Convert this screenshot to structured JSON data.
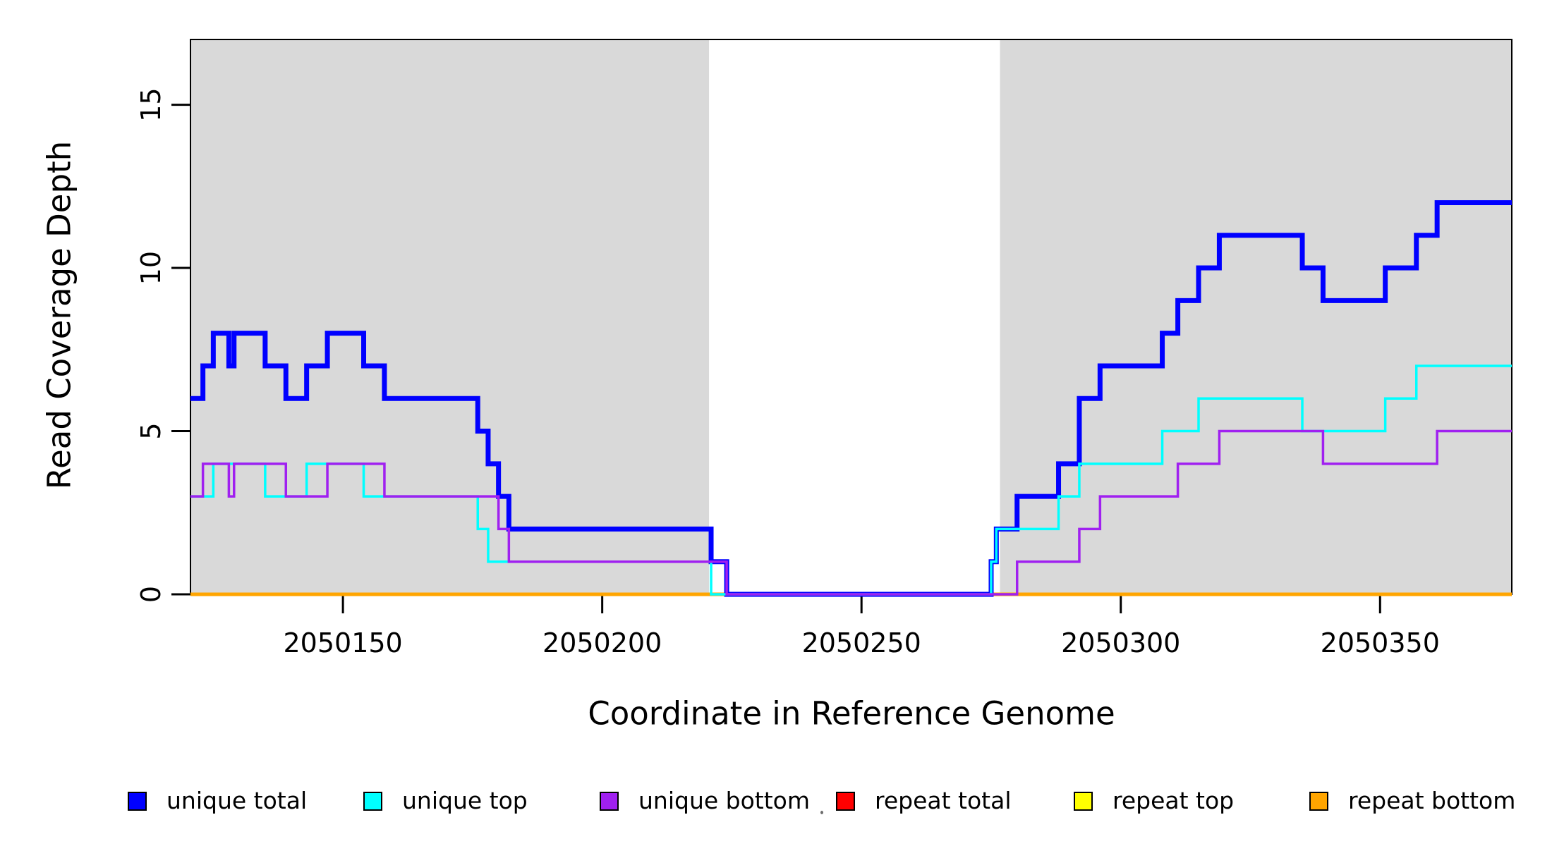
{
  "figure": {
    "xlabel": "Coordinate in Reference Genome",
    "ylabel": "Read Coverage Depth",
    "stray_mark": ""
  },
  "chart_data": {
    "type": "line",
    "subtype": "step-coverage",
    "title": "",
    "xlabel": "Coordinate in Reference Genome",
    "ylabel": "Read Coverage Depth",
    "xlim": [
      2050120.6,
      2050375.4
    ],
    "ylim": [
      0,
      17
    ],
    "x_ticks": [
      2050150,
      2050200,
      2050250,
      2050300,
      2050350
    ],
    "y_ticks": [
      0,
      5,
      10,
      15
    ],
    "grid": false,
    "legend_position": "bottom",
    "plot_background": "#ffffff",
    "shaded_regions": [
      {
        "from": 2050120.6,
        "to": 2050220.6,
        "color": "#D9D9D9"
      },
      {
        "from": 2050276.7,
        "to": 2050375.4,
        "color": "#D9D9D9"
      }
    ],
    "x_end": 2050375.4,
    "series": [
      {
        "name": "unique total",
        "color": "#0000FF",
        "stroke_width": 7,
        "steps": [
          [
            2050120.6,
            6
          ],
          [
            2050123,
            7
          ],
          [
            2050125,
            8
          ],
          [
            2050128,
            7
          ],
          [
            2050129,
            8
          ],
          [
            2050135,
            7
          ],
          [
            2050139,
            6
          ],
          [
            2050143,
            7
          ],
          [
            2050147,
            8
          ],
          [
            2050154,
            7
          ],
          [
            2050158,
            6
          ],
          [
            2050176,
            5
          ],
          [
            2050178,
            4
          ],
          [
            2050180,
            3
          ],
          [
            2050182,
            2
          ],
          [
            2050221,
            1
          ],
          [
            2050224,
            0
          ],
          [
            2050275,
            1
          ],
          [
            2050276,
            2
          ],
          [
            2050280,
            3
          ],
          [
            2050288,
            4
          ],
          [
            2050292,
            6
          ],
          [
            2050296,
            7
          ],
          [
            2050308,
            8
          ],
          [
            2050311,
            9
          ],
          [
            2050315,
            10
          ],
          [
            2050319,
            11
          ],
          [
            2050335,
            10
          ],
          [
            2050339,
            9
          ],
          [
            2050351,
            10
          ],
          [
            2050357,
            11
          ],
          [
            2050361,
            12
          ]
        ]
      },
      {
        "name": "unique top",
        "color": "#00FFFF",
        "stroke_width": 3.5,
        "steps": [
          [
            2050120.6,
            3
          ],
          [
            2050125,
            4
          ],
          [
            2050135,
            3
          ],
          [
            2050143,
            4
          ],
          [
            2050154,
            3
          ],
          [
            2050176,
            2
          ],
          [
            2050178,
            1
          ],
          [
            2050221,
            0
          ],
          [
            2050275,
            1
          ],
          [
            2050276,
            2
          ],
          [
            2050288,
            3
          ],
          [
            2050292,
            4
          ],
          [
            2050308,
            5
          ],
          [
            2050315,
            6
          ],
          [
            2050335,
            5
          ],
          [
            2050351,
            6
          ],
          [
            2050357,
            7
          ]
        ]
      },
      {
        "name": "unique bottom",
        "color": "#A020F0",
        "stroke_width": 3.5,
        "steps": [
          [
            2050120.6,
            3
          ],
          [
            2050123,
            4
          ],
          [
            2050128,
            3
          ],
          [
            2050129,
            4
          ],
          [
            2050139,
            3
          ],
          [
            2050147,
            4
          ],
          [
            2050158,
            3
          ],
          [
            2050180,
            2
          ],
          [
            2050182,
            1
          ],
          [
            2050224,
            0
          ],
          [
            2050280,
            1
          ],
          [
            2050292,
            2
          ],
          [
            2050296,
            3
          ],
          [
            2050311,
            4
          ],
          [
            2050319,
            5
          ],
          [
            2050339,
            4
          ],
          [
            2050361,
            5
          ]
        ]
      },
      {
        "name": "repeat total",
        "color": "#FF0000",
        "stroke_width": 3.5,
        "steps": [
          [
            2050120.6,
            0
          ]
        ]
      },
      {
        "name": "repeat top",
        "color": "#FFFF00",
        "stroke_width": 3.5,
        "steps": [
          [
            2050120.6,
            0
          ]
        ]
      },
      {
        "name": "repeat bottom",
        "color": "#FFA500",
        "stroke_width": 5,
        "steps": [
          [
            2050120.6,
            0
          ]
        ]
      }
    ],
    "legend": [
      {
        "label": "unique total",
        "color": "#0000FF"
      },
      {
        "label": "unique top",
        "color": "#00FFFF"
      },
      {
        "label": "unique bottom",
        "color": "#A020F0"
      },
      {
        "label": "repeat total",
        "color": "#FF0000"
      },
      {
        "label": "repeat top",
        "color": "#FFFF00"
      },
      {
        "label": "repeat bottom",
        "color": "#FFA500"
      }
    ]
  }
}
